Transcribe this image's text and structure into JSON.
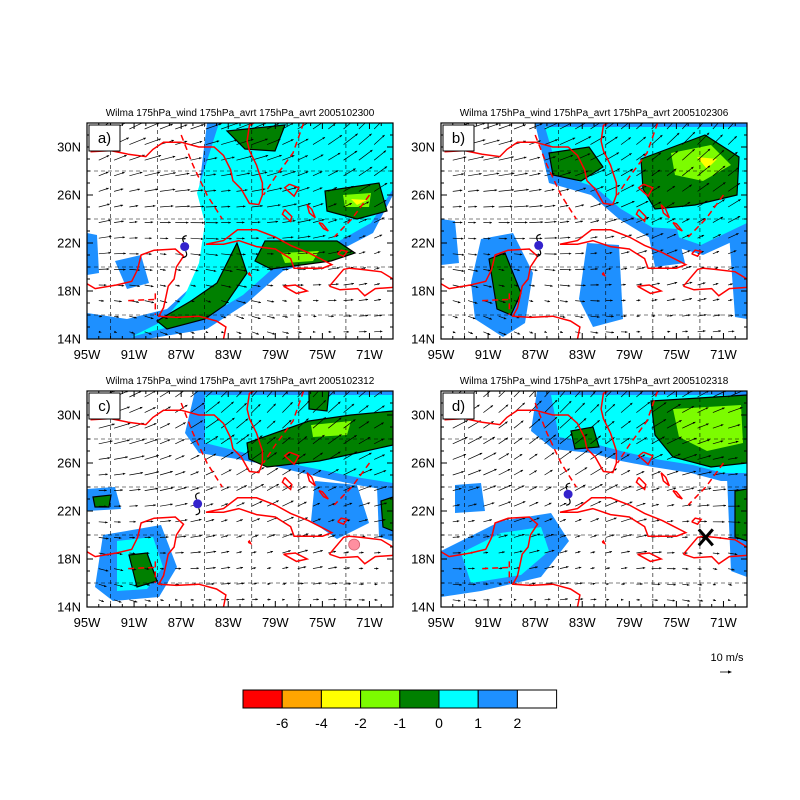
{
  "panels": [
    {
      "id": "a",
      "label": "a)",
      "title": "Wilma 175hPa_wind 175hPa_avrt 175hPa_avrt 2005102300"
    },
    {
      "id": "b",
      "label": "b)",
      "title": "Wilma 175hPa_wind 175hPa_avrt 175hPa_avrt 2005102306"
    },
    {
      "id": "c",
      "label": "c)",
      "title": "Wilma 175hPa_wind 175hPa_avrt 175hPa_avrt 2005102312"
    },
    {
      "id": "d",
      "label": "d)",
      "title": "Wilma 175hPa_wind 175hPa_avrt 175hPa_avrt 2005102318"
    }
  ],
  "axes": {
    "lat_ticks": [
      "30N",
      "26N",
      "22N",
      "18N",
      "14N"
    ],
    "lon_ticks": [
      "95W",
      "91W",
      "87W",
      "83W",
      "79W",
      "75W",
      "71W"
    ],
    "lat_range": [
      14,
      32
    ],
    "lon_range": [
      -95,
      -69
    ]
  },
  "vector_reference": {
    "label": "10 m/s"
  },
  "colorbar": {
    "colors": [
      "#ff0000",
      "#ffa500",
      "#ffff00",
      "#7cfc00",
      "#008000",
      "#00ffff",
      "#1e90ff",
      "#ffffff"
    ],
    "labels": [
      "-6",
      "-4",
      "-2",
      "-1",
      "0",
      "1",
      "2"
    ]
  },
  "storm_markers": [
    {
      "panel": "a",
      "lon": -86.7,
      "lat": 21.7,
      "color": "#3322cc"
    },
    {
      "panel": "b",
      "lon": -86.7,
      "lat": 21.8,
      "color": "#3322cc"
    },
    {
      "panel": "c",
      "lon": -85.6,
      "lat": 22.6,
      "color": "#3322cc"
    },
    {
      "panel": "d",
      "lon": -84.2,
      "lat": 23.4,
      "color": "#3322cc"
    }
  ],
  "other_markers": [
    {
      "panel": "c",
      "type": "circle",
      "lon": -72.3,
      "lat": 19.2,
      "color": "#ff8fa0"
    },
    {
      "panel": "d",
      "type": "cross",
      "lon": -72.5,
      "lat": 19.8,
      "color": "#000000"
    }
  ]
}
